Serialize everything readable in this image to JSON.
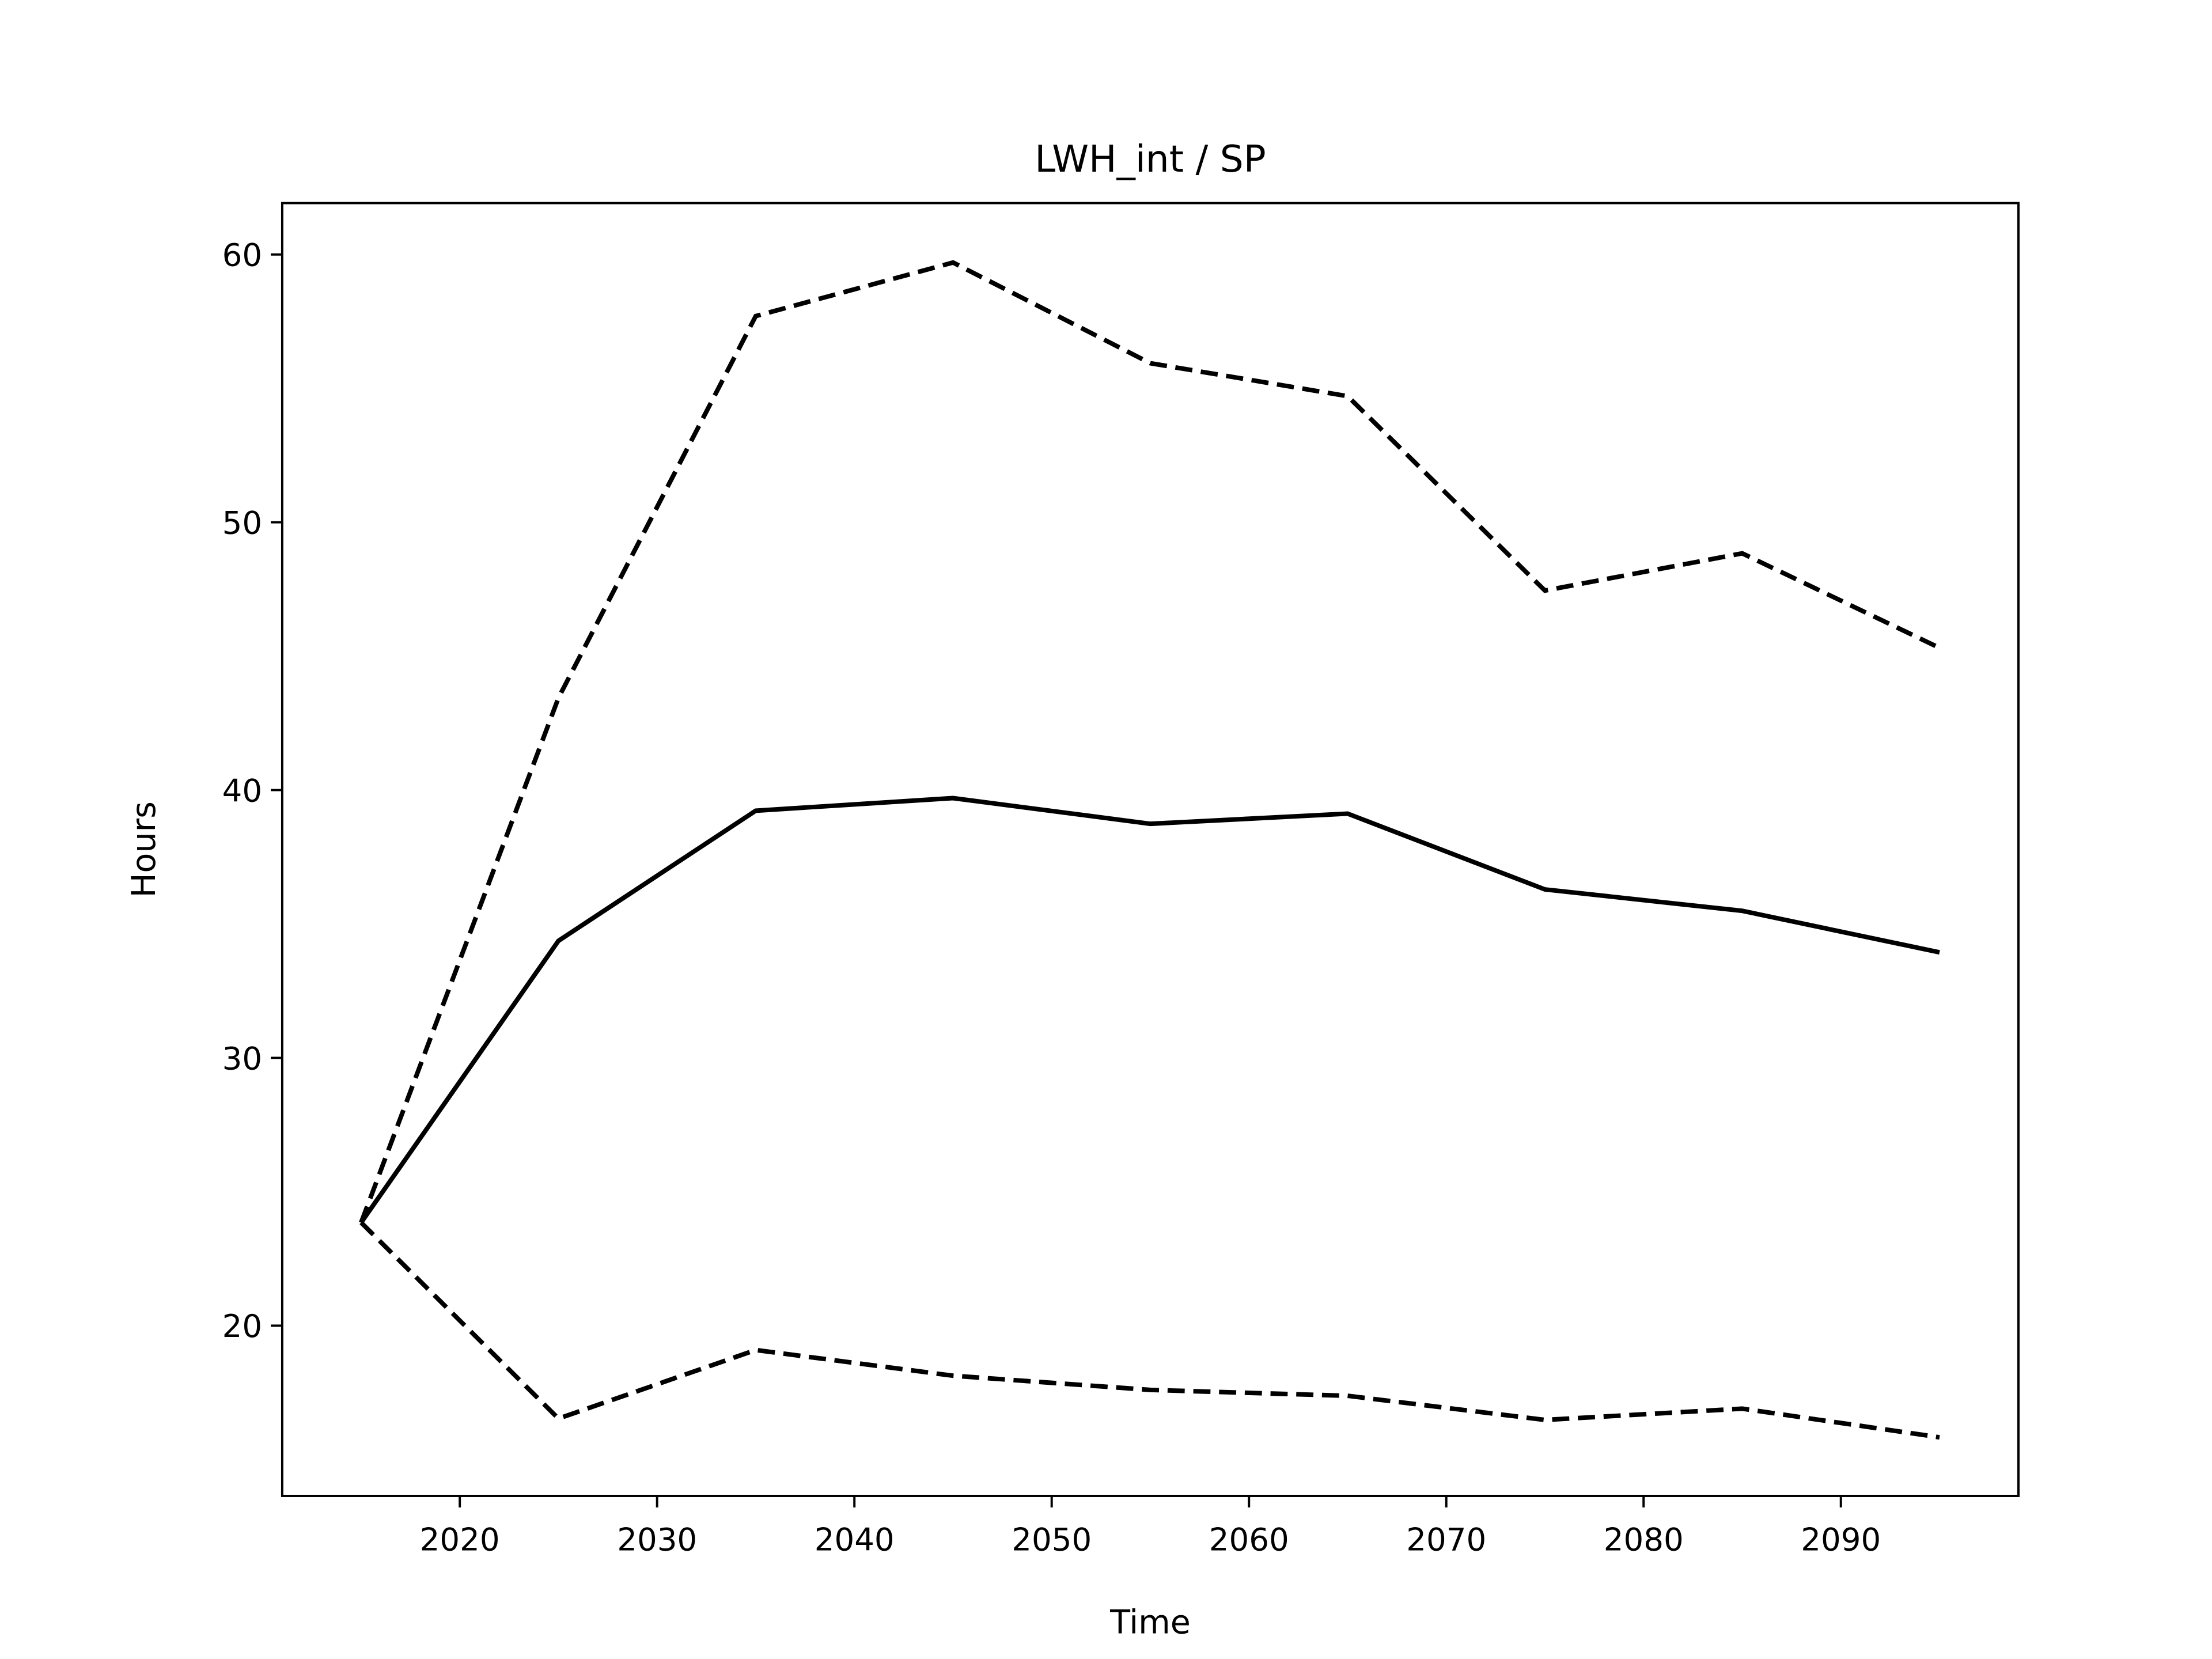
{
  "chart_data": {
    "type": "line",
    "title": "LWH_int / SP",
    "xlabel": "Time",
    "ylabel": "Hours",
    "x": [
      2015,
      2025,
      2035,
      2045,
      2055,
      2065,
      2075,
      2085,
      2095
    ],
    "series": [
      {
        "color": "#000000",
        "linestyle": "solid",
        "values": [
          23.85,
          34.37,
          39.23,
          39.7,
          38.74,
          39.12,
          36.29,
          35.49,
          33.94
        ]
      },
      {
        "color": "#000000",
        "linestyle": "dashed",
        "values": [
          23.85,
          43.44,
          57.7,
          59.7,
          55.94,
          54.71,
          47.45,
          48.84,
          45.31
        ]
      },
      {
        "color": "#000000",
        "linestyle": "dashed",
        "values": [
          23.85,
          16.53,
          19.09,
          18.13,
          17.6,
          17.38,
          16.48,
          16.9,
          15.83
        ]
      }
    ],
    "xlim": [
      2011,
      2099
    ],
    "xticks": [
      2020,
      2030,
      2040,
      2050,
      2060,
      2070,
      2080,
      2090
    ],
    "ylim": [
      13.64,
      61.92
    ],
    "yticks": [
      20,
      30,
      40,
      50,
      60
    ],
    "grid": false
  }
}
